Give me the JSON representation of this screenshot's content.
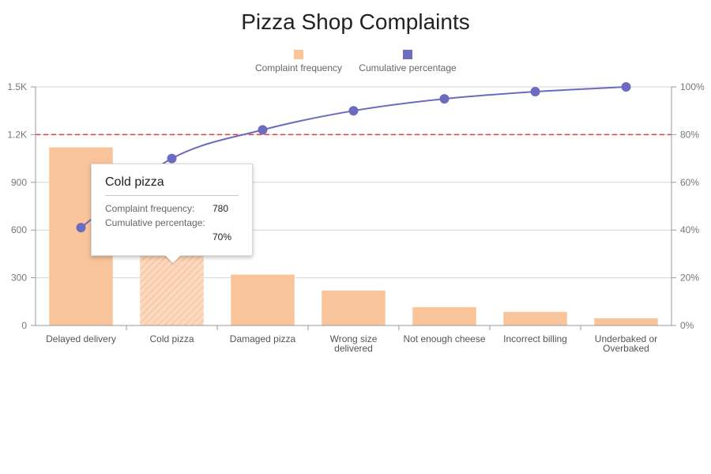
{
  "chart_data": {
    "type": "bar",
    "title": "Pizza Shop Complaints",
    "categories": [
      "Delayed delivery",
      "Cold pizza",
      "Damaged pizza",
      "Wrong size delivered",
      "Not enough cheese",
      "Incorrect billing",
      "Underbaked or Overbaked"
    ],
    "category_lines": [
      [
        "Delayed delivery"
      ],
      [
        "Cold pizza"
      ],
      [
        "Damaged pizza"
      ],
      [
        "Wrong size",
        "delivered"
      ],
      [
        "Not enough cheese"
      ],
      [
        "Incorrect billing"
      ],
      [
        "Underbaked or",
        "Overbaked"
      ]
    ],
    "series": [
      {
        "name": "Complaint frequency",
        "type": "bar",
        "axis": "left",
        "color": "#fac49a",
        "values": [
          1120,
          780,
          320,
          220,
          115,
          85,
          45
        ]
      },
      {
        "name": "Cumulative percentage",
        "type": "line",
        "axis": "right",
        "color": "#6b6bbf",
        "values": [
          41,
          70,
          82,
          90,
          95,
          98,
          100
        ]
      }
    ],
    "y_left": {
      "min": 0,
      "max": 1500,
      "ticks": [
        0,
        300,
        600,
        900,
        1200,
        1500
      ],
      "tick_labels": [
        "0",
        "300",
        "600",
        "900",
        "1.2K",
        "1.5K"
      ]
    },
    "y_right": {
      "min": 0,
      "max": 100,
      "ticks": [
        0,
        20,
        40,
        60,
        80,
        100
      ],
      "tick_labels": [
        "0%",
        "20%",
        "40%",
        "60%",
        "80%",
        "100%"
      ]
    },
    "threshold": {
      "value": 80,
      "axis": "right",
      "color": "#e03c3c",
      "style": "dashed"
    },
    "highlighted_index": 1,
    "legend_position": "top-center",
    "grid": true
  },
  "tooltip": {
    "title": "Cold pizza",
    "rows": [
      {
        "label": "Complaint frequency:",
        "value": "780"
      },
      {
        "label": "Cumulative percentage:",
        "value": "70%"
      }
    ]
  }
}
